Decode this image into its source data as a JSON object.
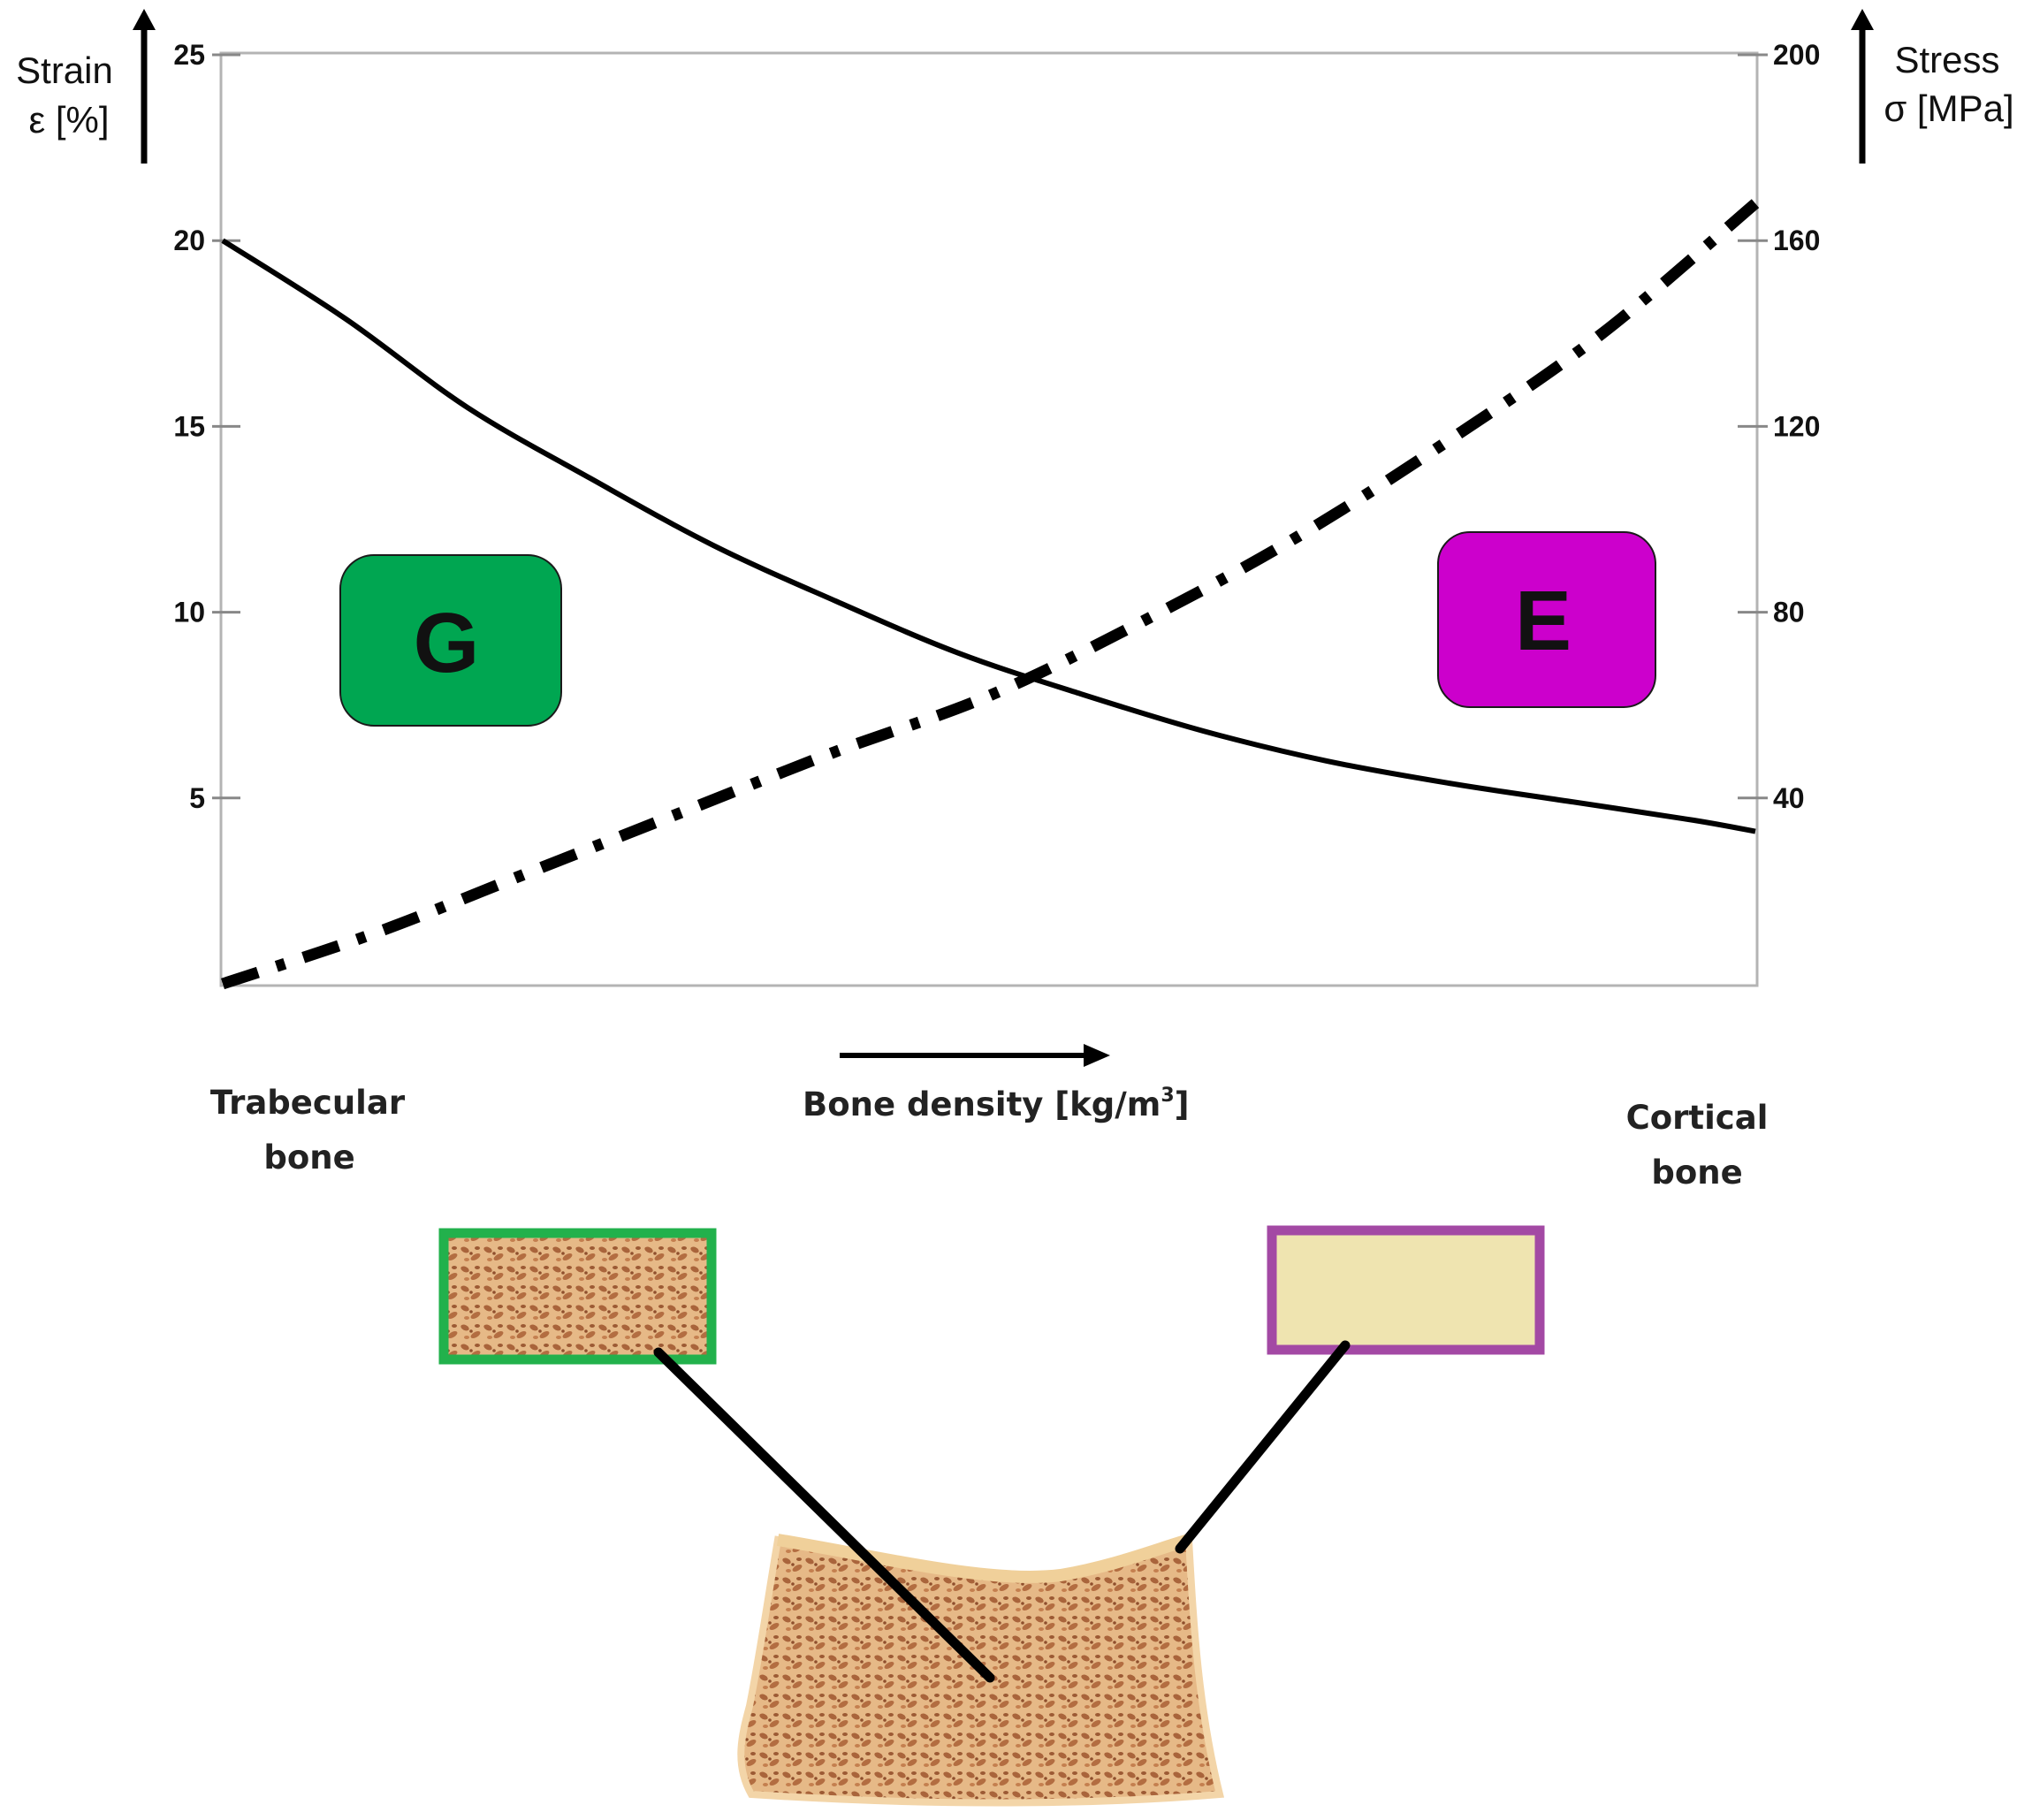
{
  "chart_data": {
    "type": "line",
    "x_scale": "relative bone density (0 = trabecular, 1 = cortical)",
    "y_left": {
      "label_line1": "Strain",
      "label_line2": "ε [%]",
      "ylim": [
        0,
        25
      ],
      "ticks": [
        5,
        10,
        15,
        20,
        25
      ]
    },
    "y_right": {
      "label_line1": "Stress",
      "label_line2": "σ [MPa]",
      "ylim": [
        0,
        200
      ],
      "ticks": [
        40,
        80,
        120,
        160,
        200
      ]
    },
    "x_axis_label": "Bone  density [kg/m",
    "x_axis_label_sup": "3",
    "x_axis_label_end": "]",
    "left_end_label": [
      "Trabecular",
      "bone"
    ],
    "right_end_label": [
      "Cortical",
      "bone"
    ],
    "series": [
      {
        "axis": "left",
        "style": "solid",
        "x": [
          0,
          0.08,
          0.16,
          0.24,
          0.32,
          0.4,
          0.48,
          0.56,
          0.64,
          0.72,
          0.8,
          0.88,
          0.96,
          1.0
        ],
        "y": [
          20.0,
          17.9,
          15.5,
          13.6,
          11.8,
          10.3,
          8.9,
          7.8,
          6.8,
          6.0,
          5.4,
          4.9,
          4.4,
          4.1
        ]
      },
      {
        "axis": "right",
        "style": "dash-dot",
        "x": [
          0,
          0.1,
          0.2,
          0.3,
          0.4,
          0.5,
          0.6,
          0.7,
          0.8,
          0.9,
          1.0
        ],
        "y": [
          0,
          11,
          24,
          37,
          50,
          62,
          78,
          96,
          117,
          140,
          168
        ]
      }
    ],
    "badges": [
      {
        "letter": "G",
        "color": "#00a651"
      },
      {
        "letter": "E",
        "color": "#cc00cc"
      }
    ]
  },
  "illustration": {
    "trabecular_frame_color": "#22b14c",
    "cortical_frame_color": "#a349a4",
    "cortical_fill_color": "#efe4b0",
    "bone_color": "#e3b27a"
  }
}
